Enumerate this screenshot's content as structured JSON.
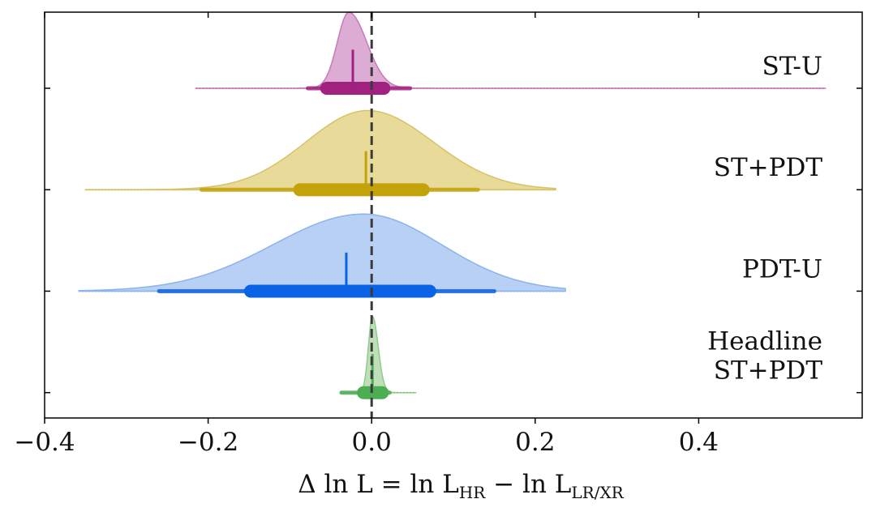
{
  "chart_data": {
    "type": "violin",
    "xlim": [
      -0.4,
      0.6
    ],
    "x_ticks": [
      -0.4,
      -0.2,
      0.0,
      0.2,
      0.4
    ],
    "x_tick_labels": [
      "−0.4",
      "−0.2",
      "0.0",
      "0.2",
      "0.4"
    ],
    "xlabel": {
      "prefix": "Δ ln L = ln L",
      "sub1": "HR",
      "mid": " − ln L",
      "sub2": "LR/XR"
    },
    "reference_line": 0.0,
    "series": [
      {
        "name": "ST-U",
        "label_lines": [
          "ST-U"
        ],
        "color": "#b5479b",
        "fill": "#d9a3cf",
        "stroke": "#c77ab8",
        "dark": "#a0217f",
        "range": [
          -0.215,
          0.555
        ],
        "median": -0.023,
        "inner_interval": [
          -0.055,
          0.015
        ],
        "outer_interval": [
          -0.078,
          0.047
        ],
        "peak": -0.028,
        "sigma_left": 0.014,
        "sigma_right": 0.022,
        "height": 0.75
      },
      {
        "name": "ST+PDT",
        "label_lines": [
          "ST+PDT"
        ],
        "color": "#c9a80f",
        "fill": "#e5d68e",
        "stroke": "#d8c266",
        "dark": "#c4a20a",
        "range": [
          -0.35,
          0.225
        ],
        "median": -0.007,
        "inner_interval": [
          -0.088,
          0.063
        ],
        "outer_interval": [
          -0.208,
          0.13
        ],
        "peak": -0.005,
        "sigma_left": 0.075,
        "sigma_right": 0.08,
        "height": 0.78
      },
      {
        "name": "PDT-U",
        "label_lines": [
          "PDT-U"
        ],
        "color": "#1565e0",
        "fill": "#afcbf2",
        "stroke": "#8bb4ec",
        "dark": "#0a62e6",
        "range": [
          -0.358,
          0.237
        ],
        "median": -0.031,
        "inner_interval": [
          -0.148,
          0.071
        ],
        "outer_interval": [
          -0.26,
          0.15
        ],
        "peak": -0.01,
        "sigma_left": 0.11,
        "sigma_right": 0.095,
        "height": 0.76
      },
      {
        "name": "Headline ST+PDT",
        "label_lines": [
          "Headline",
          "ST+PDT"
        ],
        "color": "#3fa24a",
        "fill": "#b8dcb3",
        "stroke": "#93c98c",
        "dark": "#4cad53",
        "range": [
          -0.037,
          0.054
        ],
        "median": 0.001,
        "inner_interval": [
          -0.01,
          0.013
        ],
        "outer_interval": [
          -0.037,
          0.022
        ],
        "peak": 0.001,
        "sigma_left": 0.005,
        "sigma_right": 0.007,
        "height": 0.75
      }
    ]
  }
}
